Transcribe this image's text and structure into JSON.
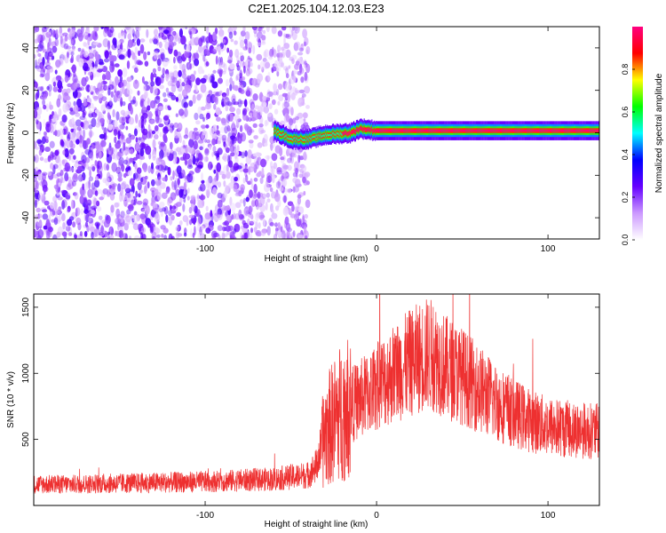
{
  "title": "C2E1.2025.104.12.03.E23",
  "chart_data": [
    {
      "type": "heatmap",
      "xlabel": "Height of straight line (km)",
      "ylabel": "Frequency (Hz)",
      "xlim": [
        -200,
        130
      ],
      "ylim": [
        -50,
        50
      ],
      "x_ticks": [
        -100,
        0,
        100
      ],
      "y_ticks": [
        -40,
        -20,
        0,
        20,
        40
      ],
      "colorbar": {
        "label": "Normalized spectral amplitude",
        "range": [
          0,
          1
        ],
        "ticks": [
          0.0,
          0.2,
          0.4,
          0.6,
          0.8
        ],
        "colormap": [
          "#ffffff",
          "#cc99ff",
          "#6600ff",
          "#0000ff",
          "#00ffff",
          "#00ff00",
          "#ffff00",
          "#ff0000",
          "#ff0080"
        ]
      },
      "noise_region_x": [
        -200,
        -40
      ],
      "noise_mean_amplitude": 0.12,
      "signal_band": {
        "x_range": [
          -60,
          130
        ],
        "freq_center_hz": [
          {
            "x": -60,
            "f": 1
          },
          {
            "x": -50,
            "f": -3
          },
          {
            "x": -40,
            "f": -3
          },
          {
            "x": -30,
            "f": -1
          },
          {
            "x": -15,
            "f": 0
          },
          {
            "x": -10,
            "f": 2
          },
          {
            "x": 0,
            "f": 1
          },
          {
            "x": 50,
            "f": 1
          },
          {
            "x": 130,
            "f": 1
          }
        ],
        "peak_amplitude": 1.0
      },
      "grid": false
    },
    {
      "type": "line",
      "xlabel": "Height of straight line (km)",
      "ylabel": "SNR (10 * v/v)",
      "xlim": [
        -200,
        130
      ],
      "ylim": [
        0,
        1600
      ],
      "x_ticks": [
        -100,
        0,
        100
      ],
      "y_ticks": [
        500,
        1000,
        1500
      ],
      "line_color": "#ee3030",
      "grid": false,
      "series": [
        {
          "x": [
            -200,
            -180,
            -160,
            -140,
            -120,
            -100,
            -80,
            -60,
            -40,
            -35,
            -30,
            -25,
            -20,
            -10,
            0,
            10,
            20,
            25,
            30,
            35,
            40,
            50,
            60,
            70,
            80,
            90,
            100,
            110,
            120,
            130
          ],
          "y": [
            160,
            160,
            165,
            170,
            175,
            180,
            190,
            200,
            230,
            300,
            550,
            640,
            720,
            800,
            900,
            1000,
            1080,
            1120,
            1150,
            1120,
            1050,
            980,
            880,
            780,
            700,
            640,
            600,
            580,
            570,
            560
          ]
        }
      ]
    }
  ]
}
